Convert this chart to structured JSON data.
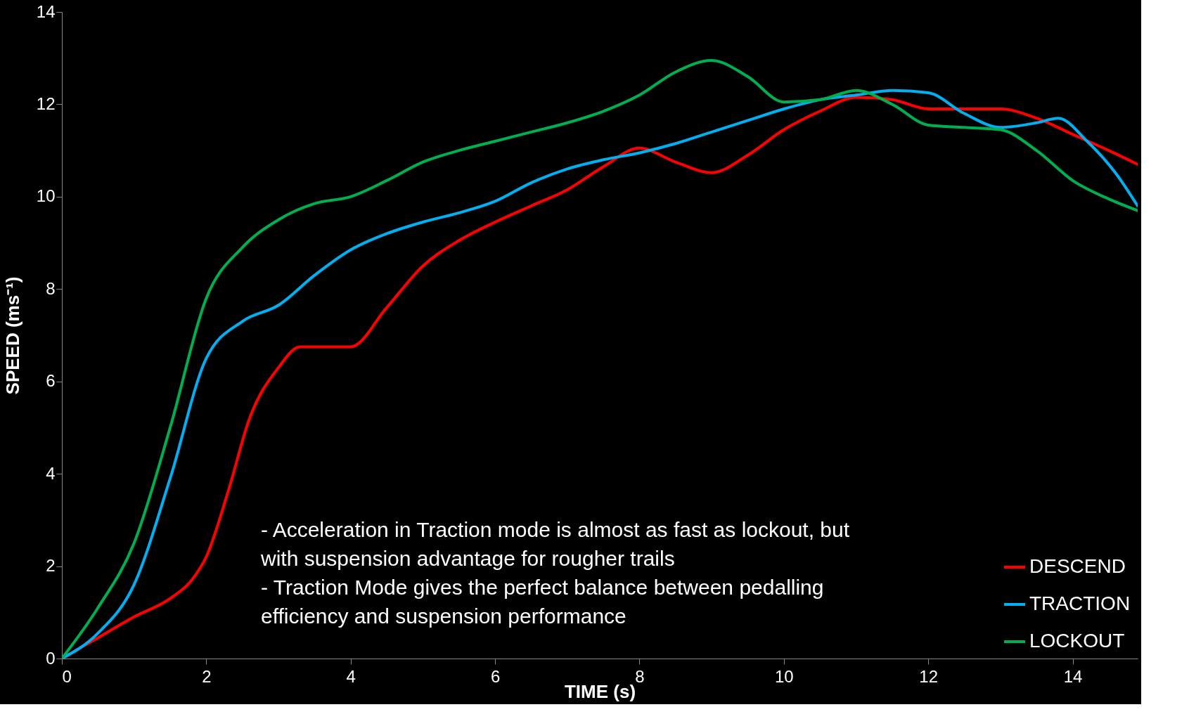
{
  "chart_data": {
    "type": "line",
    "xlabel": "TIME (s)",
    "ylabel": "SPEED (ms⁻¹)",
    "xlim": [
      0,
      14.9
    ],
    "xticks": [
      0,
      2,
      4,
      6,
      8,
      10,
      12,
      14
    ],
    "ylim": [
      0,
      14
    ],
    "yticks": [
      0,
      2,
      4,
      6,
      8,
      10,
      12,
      14
    ],
    "grid": false,
    "legend": "bottom right",
    "marker": "none",
    "line_style": "solid",
    "annotations": [
      "- Acceleration in Traction mode is almost as fast as lockout, but with suspension advantage for rougher trails",
      "- Traction Mode gives the perfect balance between pedalling efficiency and suspension performance"
    ],
    "series": [
      {
        "name": "DESCEND",
        "color": "#ff0000",
        "x": [
          0,
          0.5,
          1,
          1.5,
          1.8,
          2,
          2.3,
          2.6,
          3,
          3.3,
          3.6,
          4,
          4.5,
          5,
          5.5,
          6,
          6.5,
          7,
          7.5,
          8,
          8.5,
          9,
          9.5,
          10,
          10.5,
          11,
          11.5,
          12,
          12.5,
          13,
          13.5,
          14,
          14.5,
          14.9
        ],
        "values": [
          0,
          0.45,
          0.9,
          1.3,
          1.7,
          2.2,
          3.6,
          5.2,
          6.3,
          6.75,
          6.75,
          6.75,
          7.6,
          8.5,
          9.05,
          9.45,
          9.8,
          10.15,
          10.65,
          11.05,
          10.75,
          10.52,
          10.9,
          11.45,
          11.85,
          12.15,
          12.1,
          11.9,
          11.9,
          11.9,
          11.7,
          11.35,
          11.0,
          10.7
        ]
      },
      {
        "name": "TRACTION",
        "color": "#00b0f0",
        "x": [
          0,
          0.5,
          1,
          1.5,
          2,
          2.5,
          3,
          3.5,
          4,
          4.5,
          5,
          5.5,
          6,
          6.5,
          7,
          7.5,
          8,
          8.5,
          9,
          9.5,
          10,
          10.5,
          11,
          11.5,
          12,
          12.5,
          13,
          13.5,
          13.8,
          14.2,
          14.6,
          14.9
        ],
        "values": [
          0,
          0.55,
          1.6,
          3.9,
          6.5,
          7.3,
          7.65,
          8.3,
          8.85,
          9.2,
          9.45,
          9.65,
          9.9,
          10.3,
          10.6,
          10.8,
          10.95,
          11.15,
          11.4,
          11.65,
          11.9,
          12.1,
          12.2,
          12.3,
          12.25,
          11.8,
          11.5,
          11.6,
          11.7,
          11.2,
          10.5,
          9.8
        ]
      },
      {
        "name": "LOCKOUT",
        "color": "#00b050",
        "x": [
          0,
          0.5,
          1,
          1.5,
          2,
          2.5,
          3,
          3.5,
          4,
          4.5,
          5,
          5.5,
          6,
          6.5,
          7,
          7.5,
          8,
          8.5,
          9,
          9.5,
          10,
          10.5,
          11,
          11.5,
          12,
          12.5,
          13,
          13.5,
          14,
          14.5,
          14.9
        ],
        "values": [
          0,
          1.1,
          2.5,
          5.0,
          7.8,
          8.9,
          9.5,
          9.85,
          10.0,
          10.35,
          10.75,
          11.0,
          11.2,
          11.4,
          11.6,
          11.85,
          12.2,
          12.7,
          12.95,
          12.6,
          12.05,
          12.1,
          12.3,
          12.0,
          11.55,
          11.5,
          11.45,
          11.0,
          10.35,
          9.95,
          9.7
        ]
      }
    ]
  }
}
